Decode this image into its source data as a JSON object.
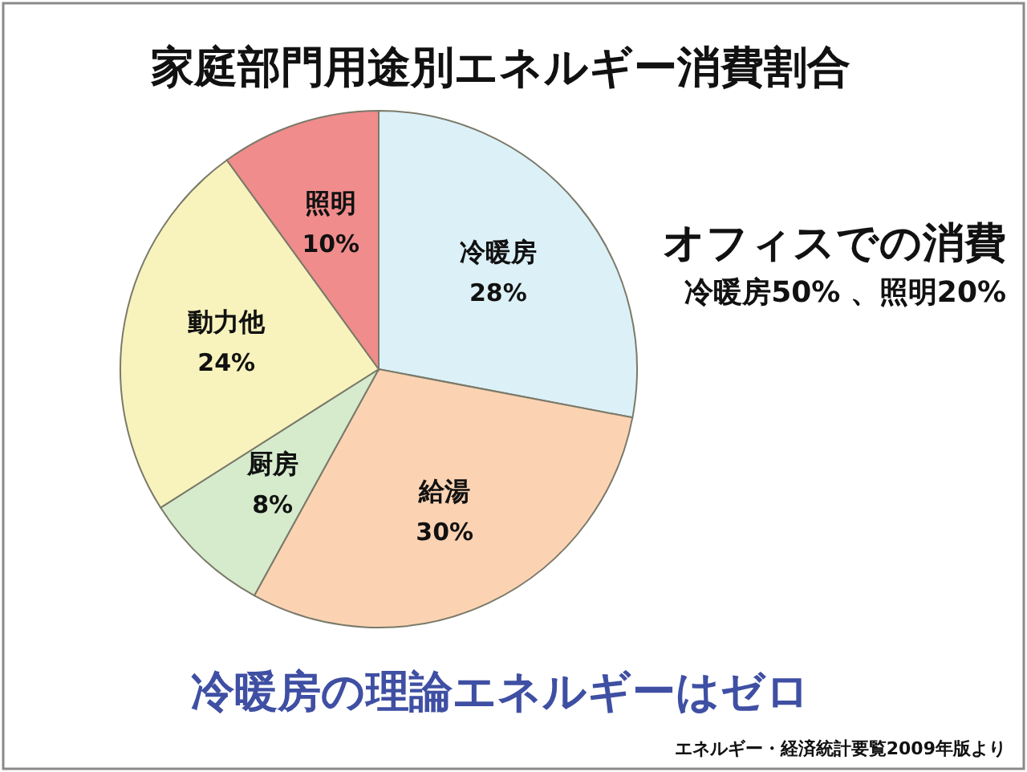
{
  "chart_data": {
    "type": "pie",
    "title": "家庭部門用途別エネルギー消費割合",
    "categories": [
      "冷暖房",
      "給湯",
      "厨房",
      "動力他",
      "照明"
    ],
    "values": [
      28,
      30,
      8,
      24,
      10
    ],
    "value_labels": [
      "28%",
      "30%",
      "8%",
      "24%",
      "10%"
    ],
    "colors": [
      "#dcf0f7",
      "#fbd3b3",
      "#d5ebcc",
      "#f8f3bd",
      "#f08c8c"
    ],
    "annotations": [
      "オフィスでの消費",
      "冷暖房50% 、照明20%",
      "冷暖房の理論エネルギーはゼロ",
      "エネルギー・経済統計要覧2009年版より"
    ]
  }
}
